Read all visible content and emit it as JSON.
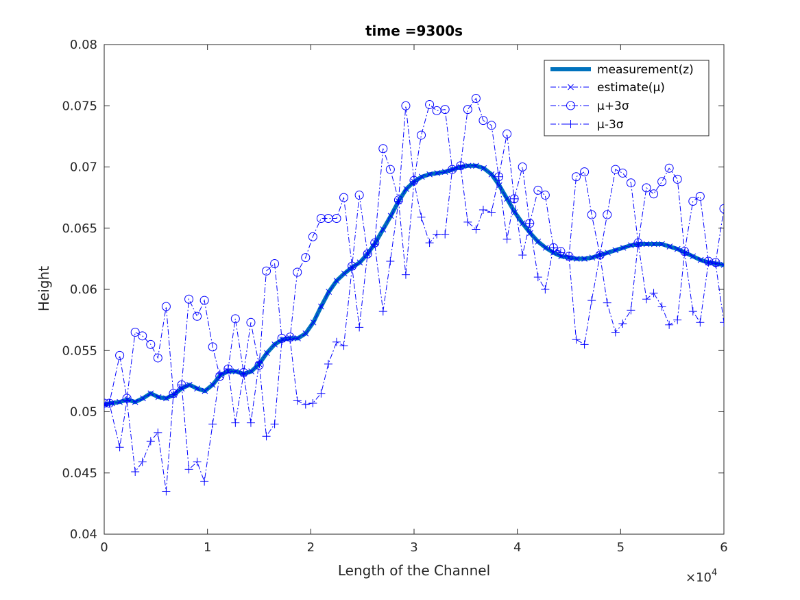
{
  "chart_data": {
    "type": "line",
    "title": "time =9300s",
    "xlabel": "Length of the Channel",
    "ylabel": "Height",
    "x_exponent_label": "×10",
    "x_exponent_power": "4",
    "xlim": [
      0,
      60000
    ],
    "ylim": [
      0.04,
      0.08
    ],
    "x_ticks": [
      0,
      10000,
      20000,
      30000,
      40000,
      50000,
      60000
    ],
    "x_tick_labels": [
      "0",
      "1",
      "2",
      "3",
      "4",
      "5",
      "6"
    ],
    "y_ticks": [
      0.04,
      0.045,
      0.05,
      0.055,
      0.06,
      0.065,
      0.07,
      0.075,
      0.08
    ],
    "y_tick_labels": [
      "0.04",
      "0.045",
      "0.05",
      "0.055",
      "0.06",
      "0.065",
      "0.07",
      "0.075",
      "0.08"
    ],
    "grid": false,
    "legend_position": "top-right",
    "x": [
      0,
      750,
      1500,
      2250,
      3000,
      3750,
      4500,
      5250,
      6000,
      6750,
      7500,
      8250,
      9000,
      9750,
      10500,
      11250,
      12000,
      12750,
      13500,
      14250,
      15000,
      15750,
      16500,
      17250,
      18000,
      18750,
      19500,
      20250,
      21000,
      21750,
      22500,
      23250,
      24000,
      24750,
      25500,
      26250,
      27000,
      27750,
      28500,
      29250,
      30000,
      30750,
      31500,
      32250,
      33000,
      33750,
      34500,
      35250,
      36000,
      36750,
      37500,
      38250,
      39000,
      39750,
      40500,
      41250,
      42000,
      42750,
      43500,
      44250,
      45000,
      45750,
      46500,
      47250,
      48000,
      48750,
      49500,
      50250,
      51000,
      51750,
      52500,
      53250,
      54000,
      54750,
      55500,
      56250,
      57000,
      57750,
      58500,
      59250,
      60000
    ],
    "series": [
      {
        "name": "measurement(z)",
        "color": "#0072bd",
        "style": "solid-thick",
        "values": [
          0.0506,
          0.0507,
          0.0508,
          0.051,
          0.0508,
          0.0511,
          0.0515,
          0.0512,
          0.0511,
          0.0514,
          0.0519,
          0.0522,
          0.0519,
          0.0517,
          0.0522,
          0.053,
          0.0533,
          0.0533,
          0.0531,
          0.0533,
          0.0539,
          0.0548,
          0.0555,
          0.0559,
          0.056,
          0.056,
          0.0564,
          0.0573,
          0.0586,
          0.0598,
          0.0607,
          0.0613,
          0.0618,
          0.0622,
          0.0629,
          0.0638,
          0.0649,
          0.066,
          0.0672,
          0.0682,
          0.0688,
          0.0692,
          0.0694,
          0.0695,
          0.0696,
          0.0698,
          0.07,
          0.0701,
          0.0701,
          0.0699,
          0.0694,
          0.0685,
          0.0674,
          0.0663,
          0.0654,
          0.0646,
          0.0639,
          0.0634,
          0.063,
          0.0627,
          0.0626,
          0.0625,
          0.0625,
          0.0626,
          0.0628,
          0.063,
          0.0632,
          0.0634,
          0.0636,
          0.0637,
          0.0637,
          0.0637,
          0.0637,
          0.0635,
          0.0633,
          0.063,
          0.0627,
          0.0624,
          0.0622,
          0.0621,
          0.062
        ]
      },
      {
        "name": "estimate(μ)",
        "color": "#0000ff",
        "style": "dashdot-x",
        "values": [
          0.0506,
          0.0507,
          0.0508,
          0.051,
          0.0508,
          0.0511,
          0.0515,
          0.0512,
          0.0511,
          0.0514,
          0.0519,
          0.0522,
          0.0519,
          0.0517,
          0.0522,
          0.053,
          0.0533,
          0.0533,
          0.0531,
          0.0533,
          0.0539,
          0.0548,
          0.0555,
          0.0559,
          0.056,
          0.056,
          0.0564,
          0.0573,
          0.0586,
          0.0598,
          0.0607,
          0.0613,
          0.0618,
          0.0622,
          0.0629,
          0.0638,
          0.0649,
          0.066,
          0.0672,
          0.0682,
          0.0688,
          0.0692,
          0.0694,
          0.0695,
          0.0696,
          0.0698,
          0.07,
          0.0701,
          0.0701,
          0.0699,
          0.0694,
          0.0685,
          0.0674,
          0.0663,
          0.0654,
          0.0646,
          0.0639,
          0.0634,
          0.063,
          0.0627,
          0.0626,
          0.0625,
          0.0625,
          0.0626,
          0.0628,
          0.063,
          0.0632,
          0.0634,
          0.0636,
          0.0637,
          0.0637,
          0.0637,
          0.0637,
          0.0635,
          0.0633,
          0.063,
          0.0627,
          0.0624,
          0.0622,
          0.0621,
          0.062
        ]
      },
      {
        "name": "μ+3σ",
        "color": "#0000ff",
        "style": "dashdot-o",
        "x": [
          0,
          500,
          1500,
          2200,
          3000,
          3700,
          4500,
          5200,
          6000,
          6700,
          7500,
          8200,
          9000,
          9700,
          10500,
          11200,
          12000,
          12700,
          13500,
          14200,
          15000,
          15700,
          16500,
          17200,
          18000,
          18700,
          19500,
          20200,
          21000,
          21700,
          22500,
          23200,
          24000,
          24700,
          25500,
          26200,
          27000,
          27700,
          28500,
          29200,
          30000,
          30700,
          31500,
          32200,
          33000,
          33700,
          34500,
          35200,
          36000,
          36700,
          37500,
          38200,
          39000,
          39700,
          40500,
          41200,
          42000,
          42700,
          43500,
          44200,
          45000,
          45700,
          46500,
          47200,
          48000,
          48700,
          49500,
          50200,
          51000,
          51700,
          52500,
          53200,
          54000,
          54700,
          55500,
          56200,
          57000,
          57700,
          58500,
          59200,
          60000
        ],
        "values": [
          0.0507,
          0.0507,
          0.0546,
          0.0511,
          0.0565,
          0.0562,
          0.0555,
          0.0544,
          0.0586,
          0.0515,
          0.0522,
          0.0592,
          0.0578,
          0.0591,
          0.0553,
          0.0529,
          0.0535,
          0.0576,
          0.0532,
          0.0573,
          0.0538,
          0.0615,
          0.0621,
          0.056,
          0.0561,
          0.0614,
          0.0626,
          0.0643,
          0.0658,
          0.0658,
          0.0658,
          0.0675,
          0.0619,
          0.0677,
          0.0629,
          0.0638,
          0.0715,
          0.0698,
          0.0673,
          0.075,
          0.0689,
          0.0726,
          0.0751,
          0.0746,
          0.0747,
          0.0698,
          0.0701,
          0.0747,
          0.0756,
          0.0738,
          0.0734,
          0.0692,
          0.0727,
          0.0674,
          0.07,
          0.0654,
          0.0681,
          0.0677,
          0.0634,
          0.0631,
          0.0627,
          0.0692,
          0.0696,
          0.0661,
          0.0628,
          0.0661,
          0.0698,
          0.0695,
          0.0687,
          0.0638,
          0.0683,
          0.0678,
          0.0688,
          0.0699,
          0.069,
          0.0631,
          0.0672,
          0.0676,
          0.0623,
          0.0622,
          0.0666
        ]
      },
      {
        "name": "μ-3σ",
        "color": "#0000ff",
        "style": "dashdot-plus",
        "x": [
          0,
          500,
          1500,
          2200,
          3000,
          3700,
          4500,
          5200,
          6000,
          6700,
          7500,
          8200,
          9000,
          9700,
          10500,
          11200,
          12000,
          12700,
          13500,
          14200,
          15000,
          15700,
          16500,
          17200,
          18000,
          18700,
          19500,
          20200,
          21000,
          21700,
          22500,
          23200,
          24000,
          24700,
          25500,
          26200,
          27000,
          27700,
          28500,
          29200,
          30000,
          30700,
          31500,
          32200,
          33000,
          33700,
          34500,
          35200,
          36000,
          36700,
          37500,
          38200,
          39000,
          39700,
          40500,
          41200,
          42000,
          42700,
          43500,
          44200,
          45000,
          45700,
          46500,
          47200,
          48000,
          48700,
          49500,
          50200,
          51000,
          51700,
          52500,
          53200,
          54000,
          54700,
          55500,
          56200,
          57000,
          57700,
          58500,
          59200,
          60000
        ],
        "values": [
          0.0505,
          0.0507,
          0.0471,
          0.0509,
          0.0451,
          0.0459,
          0.0476,
          0.0483,
          0.0435,
          0.0514,
          0.0522,
          0.0453,
          0.0459,
          0.0443,
          0.049,
          0.0531,
          0.0535,
          0.0491,
          0.0531,
          0.0491,
          0.054,
          0.048,
          0.049,
          0.0558,
          0.0559,
          0.0509,
          0.0506,
          0.0507,
          0.0515,
          0.0539,
          0.0557,
          0.0554,
          0.0618,
          0.0569,
          0.0629,
          0.0637,
          0.0582,
          0.0623,
          0.0672,
          0.0612,
          0.0688,
          0.0659,
          0.0638,
          0.0645,
          0.0645,
          0.0698,
          0.0701,
          0.0655,
          0.0649,
          0.0665,
          0.0663,
          0.0692,
          0.0641,
          0.0674,
          0.0628,
          0.0654,
          0.061,
          0.06,
          0.0634,
          0.063,
          0.0627,
          0.0559,
          0.0555,
          0.0591,
          0.0628,
          0.0589,
          0.0565,
          0.0572,
          0.0583,
          0.0638,
          0.0592,
          0.0597,
          0.0586,
          0.0571,
          0.0575,
          0.063,
          0.0582,
          0.0573,
          0.0622,
          0.0621,
          0.0573
        ]
      }
    ]
  }
}
